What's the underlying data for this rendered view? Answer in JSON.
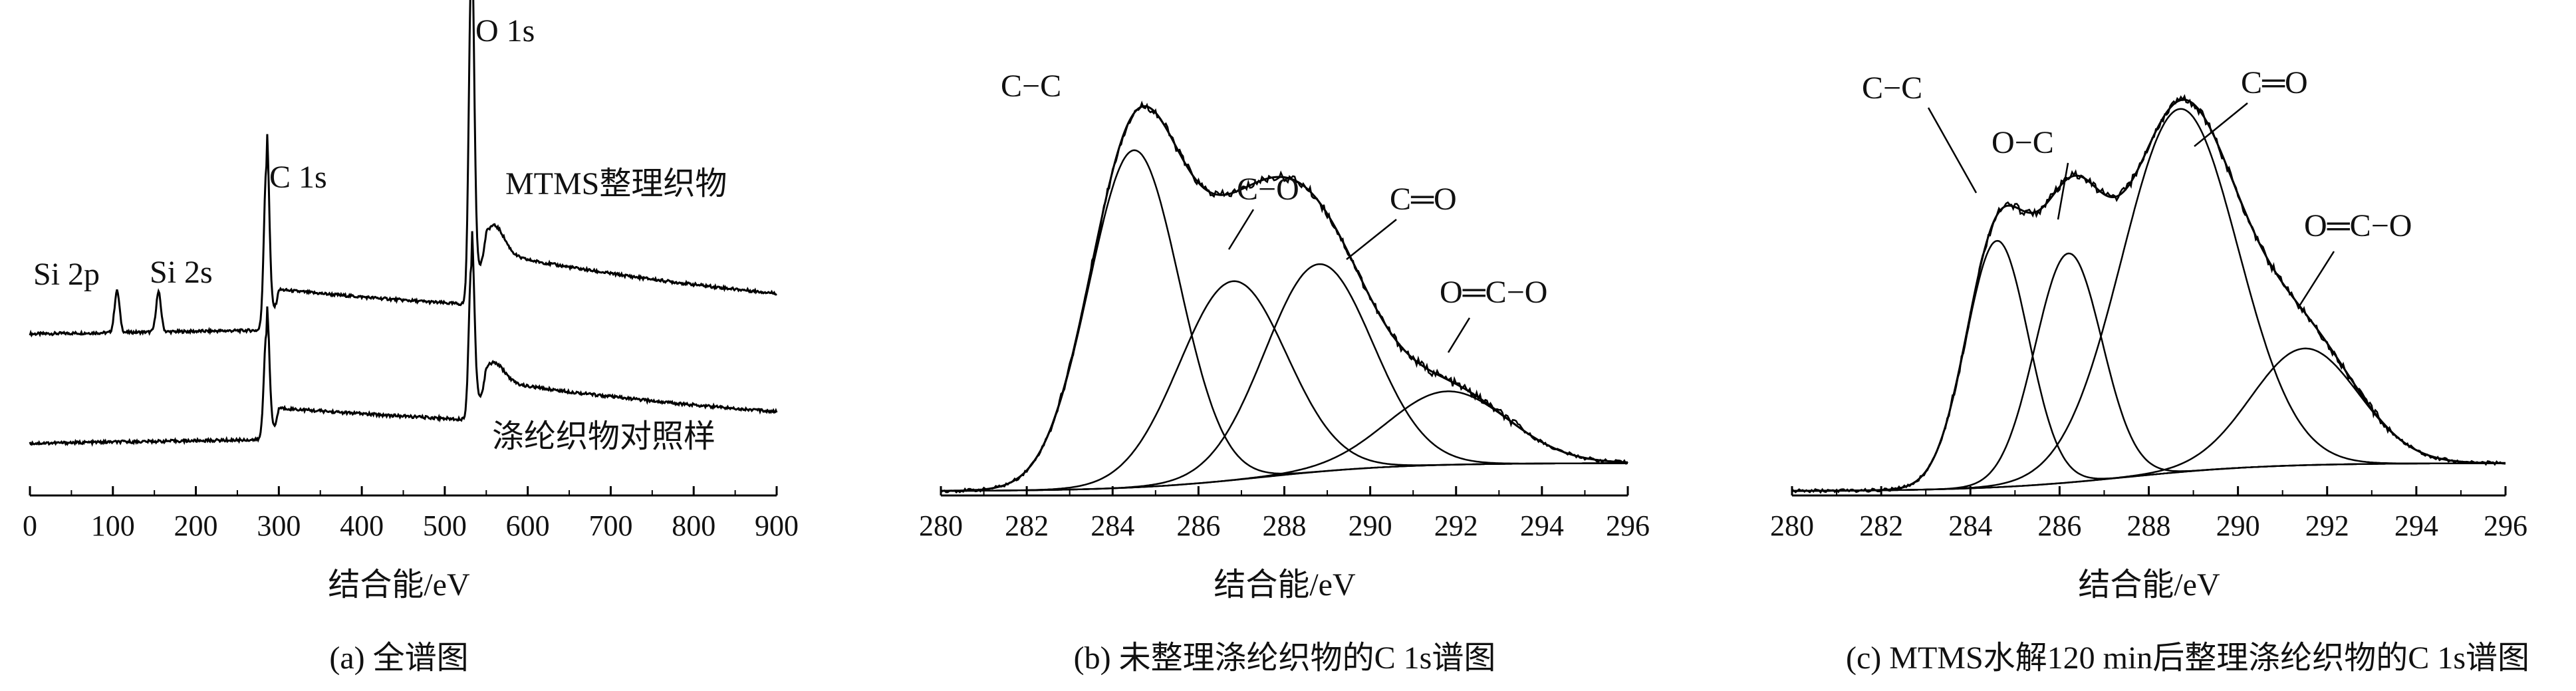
{
  "chart_data": [
    {
      "id": "a",
      "type": "line",
      "caption": "(a)  全谱图",
      "xlabel": "结合能/eV",
      "ylabel": "",
      "xlim": [
        0,
        900
      ],
      "xticks": [
        0,
        100,
        200,
        300,
        400,
        500,
        600,
        700,
        800,
        900
      ],
      "y_ticks_shown": false,
      "series": [
        {
          "name": "MTMS整理织物",
          "baseline": 0.355,
          "spikes": [
            {
              "x": 105,
              "h": 0.09,
              "w": 3
            },
            {
              "x": 155,
              "h": 0.085,
              "w": 3
            },
            {
              "x": 285,
              "h": 0.35,
              "w": 3
            },
            {
              "x": 532,
              "h": 0.72,
              "w": 3
            },
            {
              "x": 560,
              "h": 0.06,
              "w": 12
            }
          ]
        },
        {
          "name": "涤纶织物对照样",
          "baseline": 0.12,
          "spikes": [
            {
              "x": 285,
              "h": 0.23,
              "w": 3
            },
            {
              "x": 532,
              "h": 0.33,
              "w": 3
            },
            {
              "x": 560,
              "h": 0.04,
              "w": 12
            }
          ]
        }
      ],
      "annotations": [
        "Si 2p",
        "Si 2s",
        "C 1s",
        "O 1s"
      ]
    },
    {
      "id": "b",
      "type": "line",
      "caption": "(b)  未整理涤纶织物的C 1s谱图",
      "xlabel": "结合能/eV",
      "ylabel": "",
      "xlim": [
        280,
        296
      ],
      "xticks": [
        280,
        282,
        284,
        286,
        288,
        290,
        292,
        294,
        296
      ],
      "y_ticks_shown": false,
      "components": [
        {
          "label": "C−C",
          "center": 284.5,
          "height": 0.78,
          "sigma": 1.05
        },
        {
          "label": "C−O",
          "center": 286.8,
          "height": 0.46,
          "sigma": 1.25
        },
        {
          "label": "C═O",
          "center": 288.8,
          "height": 0.48,
          "sigma": 1.25
        },
        {
          "label": "O═C−O",
          "center": 291.8,
          "height": 0.17,
          "sigma": 1.4
        }
      ]
    },
    {
      "id": "c",
      "type": "line",
      "caption": "(c)  MTMS水解120 min后整理涤纶织物的C 1s谱图",
      "xlabel": "结合能/eV",
      "ylabel": "",
      "xlim": [
        280,
        296
      ],
      "xticks": [
        280,
        282,
        284,
        286,
        288,
        290,
        292,
        294,
        296
      ],
      "y_ticks_shown": false,
      "components": [
        {
          "label": "C−C",
          "center": 284.6,
          "height": 0.57,
          "sigma": 0.7
        },
        {
          "label": "O−C",
          "center": 286.2,
          "height": 0.53,
          "sigma": 0.75
        },
        {
          "label": "C═O",
          "center": 288.7,
          "height": 0.84,
          "sigma": 1.3
        },
        {
          "label": "O═C−O",
          "center": 291.5,
          "height": 0.27,
          "sigma": 1.2
        }
      ]
    }
  ]
}
